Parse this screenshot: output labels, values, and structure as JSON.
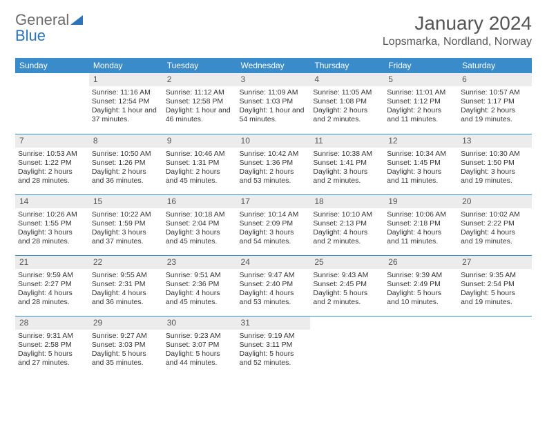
{
  "logo": {
    "word1": "General",
    "word2": "Blue"
  },
  "title": "January 2024",
  "location": "Lopsmarka, Nordland, Norway",
  "colors": {
    "header_bg": "#3a8bc9",
    "header_text": "#ffffff",
    "daybar_bg": "#ececec",
    "divider": "#3a8bc9",
    "text": "#333333",
    "title_text": "#555555",
    "logo_gray": "#6d6d6d",
    "logo_blue": "#2b74b8",
    "page_bg": "#ffffff"
  },
  "fonts": {
    "body_pt": 10.5,
    "daynum_pt": 12,
    "header_pt": 12,
    "title_pt": 28,
    "location_pt": 16
  },
  "days": [
    "Sunday",
    "Monday",
    "Tuesday",
    "Wednesday",
    "Thursday",
    "Friday",
    "Saturday"
  ],
  "weeks": [
    [
      {
        "n": "",
        "sunrise": "",
        "sunset": "",
        "daylight": ""
      },
      {
        "n": "1",
        "sunrise": "Sunrise: 11:16 AM",
        "sunset": "Sunset: 12:54 PM",
        "daylight": "Daylight: 1 hour and 37 minutes."
      },
      {
        "n": "2",
        "sunrise": "Sunrise: 11:12 AM",
        "sunset": "Sunset: 12:58 PM",
        "daylight": "Daylight: 1 hour and 46 minutes."
      },
      {
        "n": "3",
        "sunrise": "Sunrise: 11:09 AM",
        "sunset": "Sunset: 1:03 PM",
        "daylight": "Daylight: 1 hour and 54 minutes."
      },
      {
        "n": "4",
        "sunrise": "Sunrise: 11:05 AM",
        "sunset": "Sunset: 1:08 PM",
        "daylight": "Daylight: 2 hours and 2 minutes."
      },
      {
        "n": "5",
        "sunrise": "Sunrise: 11:01 AM",
        "sunset": "Sunset: 1:12 PM",
        "daylight": "Daylight: 2 hours and 11 minutes."
      },
      {
        "n": "6",
        "sunrise": "Sunrise: 10:57 AM",
        "sunset": "Sunset: 1:17 PM",
        "daylight": "Daylight: 2 hours and 19 minutes."
      }
    ],
    [
      {
        "n": "7",
        "sunrise": "Sunrise: 10:53 AM",
        "sunset": "Sunset: 1:22 PM",
        "daylight": "Daylight: 2 hours and 28 minutes."
      },
      {
        "n": "8",
        "sunrise": "Sunrise: 10:50 AM",
        "sunset": "Sunset: 1:26 PM",
        "daylight": "Daylight: 2 hours and 36 minutes."
      },
      {
        "n": "9",
        "sunrise": "Sunrise: 10:46 AM",
        "sunset": "Sunset: 1:31 PM",
        "daylight": "Daylight: 2 hours and 45 minutes."
      },
      {
        "n": "10",
        "sunrise": "Sunrise: 10:42 AM",
        "sunset": "Sunset: 1:36 PM",
        "daylight": "Daylight: 2 hours and 53 minutes."
      },
      {
        "n": "11",
        "sunrise": "Sunrise: 10:38 AM",
        "sunset": "Sunset: 1:41 PM",
        "daylight": "Daylight: 3 hours and 2 minutes."
      },
      {
        "n": "12",
        "sunrise": "Sunrise: 10:34 AM",
        "sunset": "Sunset: 1:45 PM",
        "daylight": "Daylight: 3 hours and 11 minutes."
      },
      {
        "n": "13",
        "sunrise": "Sunrise: 10:30 AM",
        "sunset": "Sunset: 1:50 PM",
        "daylight": "Daylight: 3 hours and 19 minutes."
      }
    ],
    [
      {
        "n": "14",
        "sunrise": "Sunrise: 10:26 AM",
        "sunset": "Sunset: 1:55 PM",
        "daylight": "Daylight: 3 hours and 28 minutes."
      },
      {
        "n": "15",
        "sunrise": "Sunrise: 10:22 AM",
        "sunset": "Sunset: 1:59 PM",
        "daylight": "Daylight: 3 hours and 37 minutes."
      },
      {
        "n": "16",
        "sunrise": "Sunrise: 10:18 AM",
        "sunset": "Sunset: 2:04 PM",
        "daylight": "Daylight: 3 hours and 45 minutes."
      },
      {
        "n": "17",
        "sunrise": "Sunrise: 10:14 AM",
        "sunset": "Sunset: 2:09 PM",
        "daylight": "Daylight: 3 hours and 54 minutes."
      },
      {
        "n": "18",
        "sunrise": "Sunrise: 10:10 AM",
        "sunset": "Sunset: 2:13 PM",
        "daylight": "Daylight: 4 hours and 2 minutes."
      },
      {
        "n": "19",
        "sunrise": "Sunrise: 10:06 AM",
        "sunset": "Sunset: 2:18 PM",
        "daylight": "Daylight: 4 hours and 11 minutes."
      },
      {
        "n": "20",
        "sunrise": "Sunrise: 10:02 AM",
        "sunset": "Sunset: 2:22 PM",
        "daylight": "Daylight: 4 hours and 19 minutes."
      }
    ],
    [
      {
        "n": "21",
        "sunrise": "Sunrise: 9:59 AM",
        "sunset": "Sunset: 2:27 PM",
        "daylight": "Daylight: 4 hours and 28 minutes."
      },
      {
        "n": "22",
        "sunrise": "Sunrise: 9:55 AM",
        "sunset": "Sunset: 2:31 PM",
        "daylight": "Daylight: 4 hours and 36 minutes."
      },
      {
        "n": "23",
        "sunrise": "Sunrise: 9:51 AM",
        "sunset": "Sunset: 2:36 PM",
        "daylight": "Daylight: 4 hours and 45 minutes."
      },
      {
        "n": "24",
        "sunrise": "Sunrise: 9:47 AM",
        "sunset": "Sunset: 2:40 PM",
        "daylight": "Daylight: 4 hours and 53 minutes."
      },
      {
        "n": "25",
        "sunrise": "Sunrise: 9:43 AM",
        "sunset": "Sunset: 2:45 PM",
        "daylight": "Daylight: 5 hours and 2 minutes."
      },
      {
        "n": "26",
        "sunrise": "Sunrise: 9:39 AM",
        "sunset": "Sunset: 2:49 PM",
        "daylight": "Daylight: 5 hours and 10 minutes."
      },
      {
        "n": "27",
        "sunrise": "Sunrise: 9:35 AM",
        "sunset": "Sunset: 2:54 PM",
        "daylight": "Daylight: 5 hours and 19 minutes."
      }
    ],
    [
      {
        "n": "28",
        "sunrise": "Sunrise: 9:31 AM",
        "sunset": "Sunset: 2:58 PM",
        "daylight": "Daylight: 5 hours and 27 minutes."
      },
      {
        "n": "29",
        "sunrise": "Sunrise: 9:27 AM",
        "sunset": "Sunset: 3:03 PM",
        "daylight": "Daylight: 5 hours and 35 minutes."
      },
      {
        "n": "30",
        "sunrise": "Sunrise: 9:23 AM",
        "sunset": "Sunset: 3:07 PM",
        "daylight": "Daylight: 5 hours and 44 minutes."
      },
      {
        "n": "31",
        "sunrise": "Sunrise: 9:19 AM",
        "sunset": "Sunset: 3:11 PM",
        "daylight": "Daylight: 5 hours and 52 minutes."
      },
      {
        "n": "",
        "sunrise": "",
        "sunset": "",
        "daylight": ""
      },
      {
        "n": "",
        "sunrise": "",
        "sunset": "",
        "daylight": ""
      },
      {
        "n": "",
        "sunrise": "",
        "sunset": "",
        "daylight": ""
      }
    ]
  ]
}
